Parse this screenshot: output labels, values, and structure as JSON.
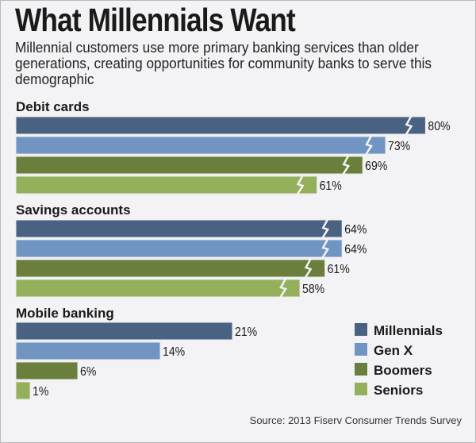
{
  "title": "What Millennials Want",
  "subtitle": "Millennial customers use more primary banking services than older generations, creating opportunities for community banks to serve this demographic",
  "source": "Source: 2013 Fiserv Consumer Trends Survey",
  "chart_data": {
    "type": "bar",
    "orientation": "horizontal",
    "title": "What Millennials Want",
    "categories": [
      "Debit cards",
      "Savings accounts",
      "Mobile banking"
    ],
    "series": [
      {
        "name": "Millennials",
        "color": "#4a6282",
        "values": [
          80,
          64,
          21
        ],
        "labels": [
          "80%",
          "64%",
          "21%"
        ]
      },
      {
        "name": "Gen X",
        "color": "#7195c2",
        "values": [
          73,
          64,
          14
        ],
        "labels": [
          "73%",
          "64%",
          "14%"
        ]
      },
      {
        "name": "Boomers",
        "color": "#6a7f3b",
        "values": [
          69,
          61,
          6
        ],
        "labels": [
          "69%",
          "61%",
          "6%"
        ]
      },
      {
        "name": "Seniors",
        "color": "#94b05a",
        "values": [
          61,
          58,
          1
        ],
        "labels": [
          "61%",
          "58%",
          "1%"
        ]
      }
    ],
    "broken_axis_groups": [
      "Debit cards",
      "Savings accounts"
    ],
    "legend_position": "bottom-right",
    "grid": false,
    "xlim": [
      0,
      100
    ]
  }
}
